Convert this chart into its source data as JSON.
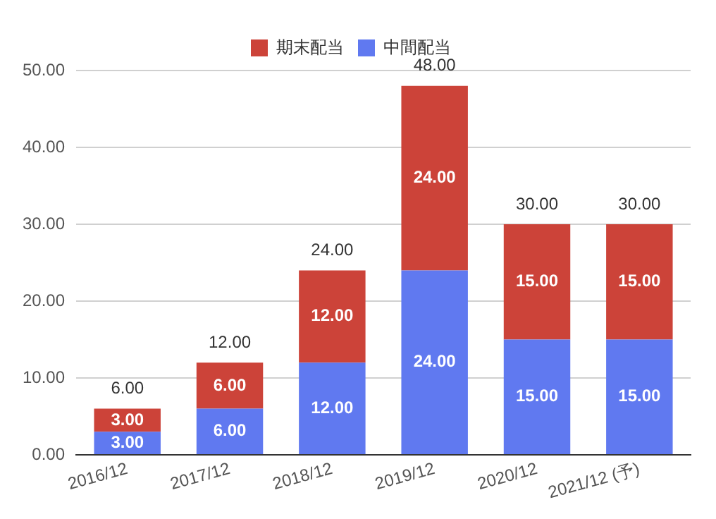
{
  "chart_data": {
    "type": "bar",
    "stacked": true,
    "categories": [
      "2016/12",
      "2017/12",
      "2018/12",
      "2019/12",
      "2020/12",
      "2021/12 (予)"
    ],
    "series": [
      {
        "name": "中間配当",
        "color": "#6079f0",
        "values": [
          3,
          6,
          12,
          24,
          15,
          15
        ],
        "value_labels": [
          "3.00",
          "6.00",
          "12.00",
          "24.00",
          "15.00",
          "15.00"
        ]
      },
      {
        "name": "期末配当",
        "color": "#cc4339",
        "values": [
          3,
          6,
          12,
          24,
          15,
          15
        ],
        "value_labels": [
          "3.00",
          "6.00",
          "12.00",
          "24.00",
          "15.00",
          "15.00"
        ]
      }
    ],
    "totals": [
      "6.00",
      "12.00",
      "24.00",
      "48.00",
      "30.00",
      "30.00"
    ],
    "ylim": [
      0,
      50
    ],
    "yticks": [
      {
        "value": 0,
        "label": "0.00"
      },
      {
        "value": 10,
        "label": "10.00"
      },
      {
        "value": 20,
        "label": "20.00"
      },
      {
        "value": 30,
        "label": "30.00"
      },
      {
        "value": 40,
        "label": "40.00"
      },
      {
        "value": 50,
        "label": "50.00"
      }
    ],
    "grid": "y",
    "legend": "top"
  }
}
